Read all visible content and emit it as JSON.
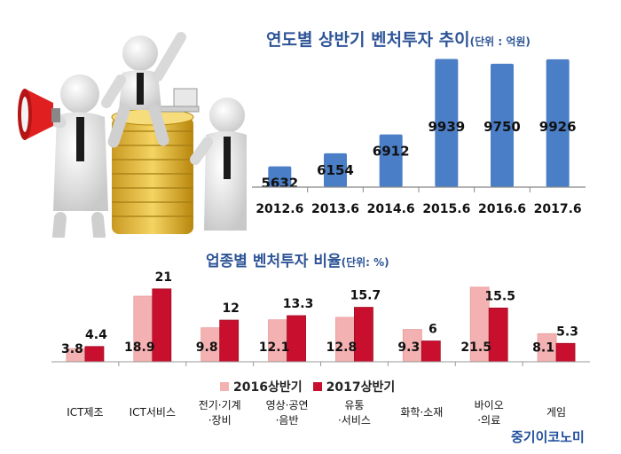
{
  "chart_data": [
    {
      "type": "bar",
      "title": "연도별 상반기 벤처투자 추이",
      "unit_label": "(단위 : 억원)",
      "categories": [
        "2012.6",
        "2013.6",
        "2014.6",
        "2015.6",
        "2016.6",
        "2017.6"
      ],
      "values": [
        5632,
        6154,
        6912,
        9939,
        9750,
        9926
      ],
      "value_labels": [
        "5632",
        "6154",
        "6912",
        "9939",
        "9750",
        "9926"
      ],
      "ylim": [
        4800,
        10100
      ],
      "grid": false,
      "color": "#4a7ec6"
    },
    {
      "type": "bar",
      "title": "업종별 벤처투자  비율",
      "unit_label": "(단위: %)",
      "categories": [
        "ICT제조",
        "ICT서비스",
        "전기·기계·장비",
        "영상·공연·음반",
        "유통·서비스",
        "화학·소재",
        "바이오·의료",
        "게임"
      ],
      "category_lines": [
        [
          "ICT제조"
        ],
        [
          "ICT서비스"
        ],
        [
          "전기·기계",
          "·장비"
        ],
        [
          "영상·공연",
          "·음반"
        ],
        [
          "유통",
          "·서비스"
        ],
        [
          "화학·소재"
        ],
        [
          "바이오",
          "·의료"
        ],
        [
          "게임"
        ]
      ],
      "series": [
        {
          "name": "2016상반기",
          "values": [
            3.8,
            18.9,
            9.8,
            12.1,
            12.8,
            9.3,
            21.5,
            8.1
          ],
          "labels": [
            "3.8",
            "18.9",
            "9.8",
            "12.1",
            "12.8",
            "9.3",
            "21.5",
            "8.1"
          ],
          "color": "#f4b1b1"
        },
        {
          "name": "2017상반기",
          "values": [
            4.4,
            21,
            12,
            13.3,
            15.7,
            6,
            15.5,
            5.3
          ],
          "labels": [
            "4.4",
            "21",
            "12",
            "13.3",
            "15.7",
            "6",
            "15.5",
            "5.3"
          ],
          "color": "#c8102e"
        }
      ],
      "ylim": [
        0,
        23
      ],
      "legend": "bottom",
      "grid": false
    }
  ],
  "brand": "중기이코노미"
}
